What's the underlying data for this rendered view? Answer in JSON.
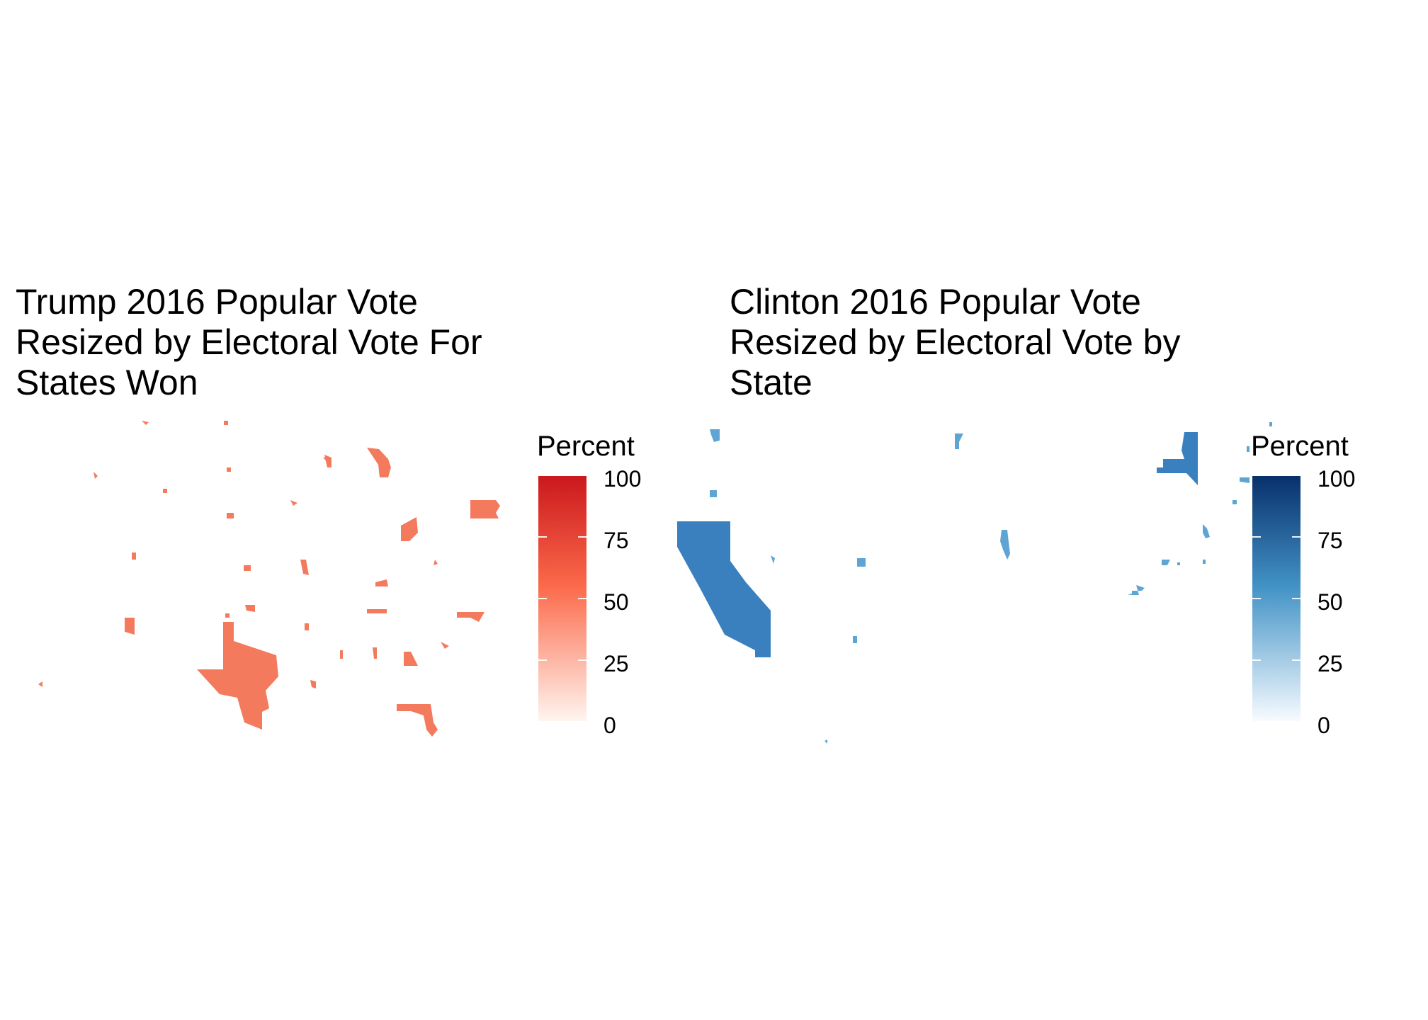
{
  "chart_data": [
    {
      "type": "map",
      "title_lines": [
        "Trump 2016 Popular Vote",
        "Resized by Electoral Vote For",
        "States Won"
      ],
      "legend": {
        "title": "Percent",
        "ticks": [
          "0",
          "25",
          "50",
          "75",
          "100"
        ],
        "range": [
          0,
          100
        ],
        "low_color": "#fff5f0",
        "mid_color": "#fb6a4a",
        "high_color": "#cb181d"
      },
      "fill_color": "#f47a5e"
    },
    {
      "type": "map",
      "title_lines": [
        "Clinton 2016 Popular Vote",
        "Resized by Electoral Vote by",
        "State"
      ],
      "legend": {
        "title": "Percent",
        "ticks": [
          "0",
          "25",
          "50",
          "75",
          "100"
        ],
        "range": [
          0,
          100
        ],
        "low_color": "#f7fbff",
        "mid_color": "#4292c6",
        "high_color": "#08306b"
      },
      "fill_colors": {
        "dark": "#3a80bf",
        "light": "#5ea5d4"
      }
    }
  ]
}
